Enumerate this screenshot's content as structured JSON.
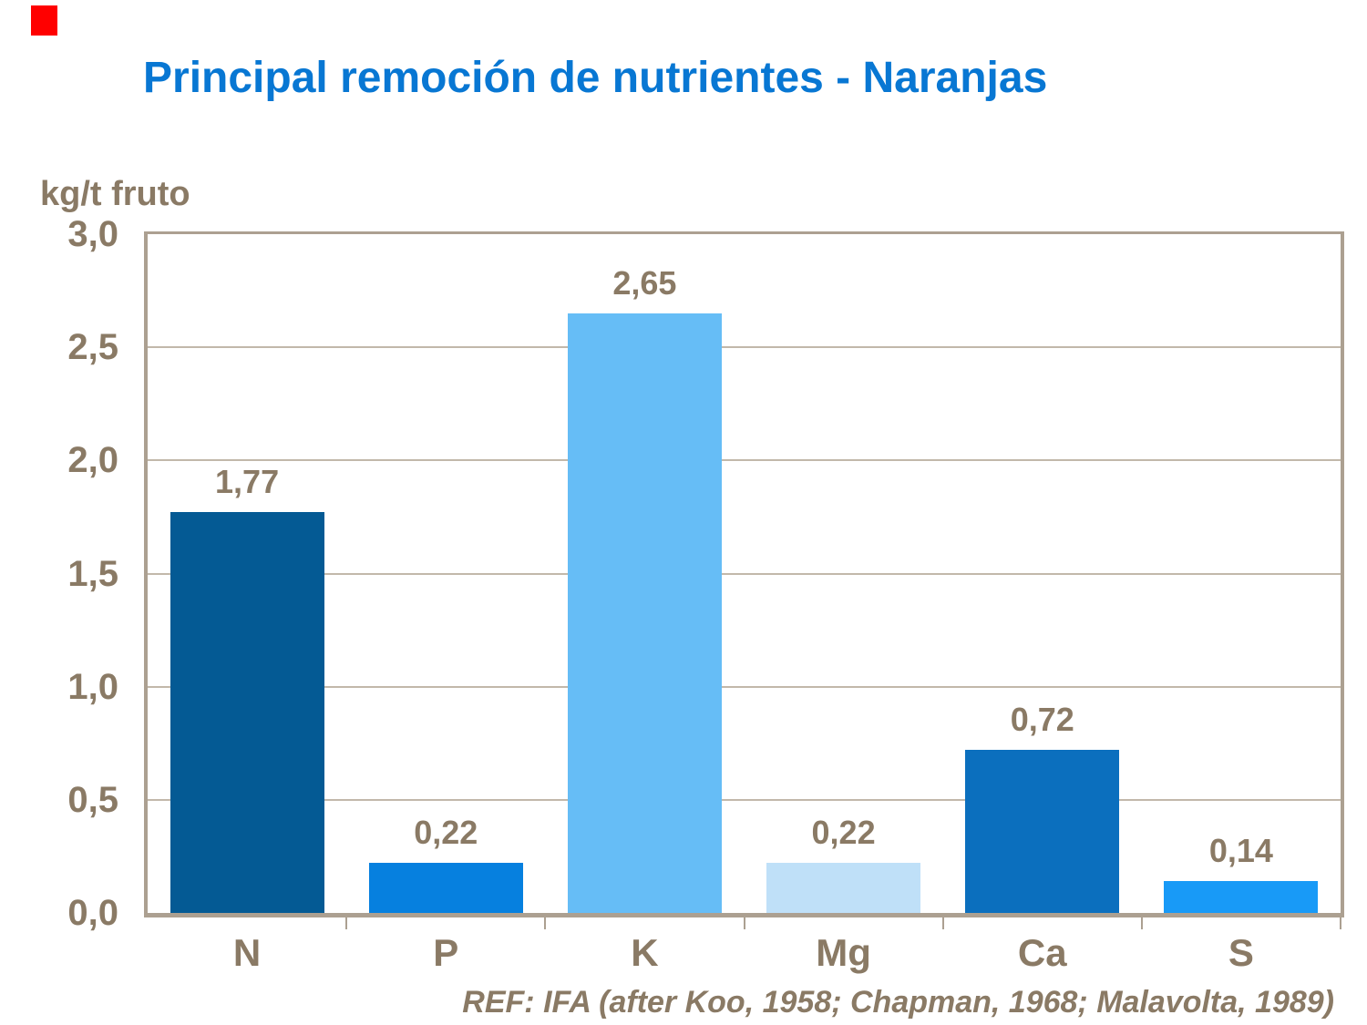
{
  "slide": {
    "title": "Principal remoción de nutrientes - Naranjas",
    "title_color": "#0877D3",
    "red_marker_color": "#FF0000",
    "text_color": "#8A7A65",
    "ref_text": "REF: IFA (after Koo, 1958; Chapman, 1968; Malavolta, 1989)"
  },
  "chart_data": {
    "type": "bar",
    "title": "Principal remoción de nutrientes - Naranjas",
    "unit_label": "kg/t fruto",
    "categories": [
      "N",
      "P",
      "K",
      "Mg",
      "Ca",
      "S"
    ],
    "values": [
      1.77,
      0.22,
      2.65,
      0.22,
      0.72,
      0.14
    ],
    "value_labels": [
      "1,77",
      "0,22",
      "2,65",
      "0,22",
      "0,72",
      "0,14"
    ],
    "bar_colors": [
      "#045A94",
      "#0680DF",
      "#66BDF6",
      "#BFE0F8",
      "#0B6FBE",
      "#189AF7"
    ],
    "ylim": [
      0,
      3
    ],
    "ytick_step": 0.5,
    "ytick_labels": [
      "3,0",
      "2,5",
      "2,0",
      "1,5",
      "1,0",
      "0,5",
      "0,0"
    ],
    "grid": true,
    "legend": false,
    "axis_color": "#ACA091",
    "gridline_color": "#C2B8AA",
    "label_color": "#8A7A65",
    "ref": "REF: IFA (after Koo, 1958; Chapman, 1968; Malavolta, 1989)"
  }
}
